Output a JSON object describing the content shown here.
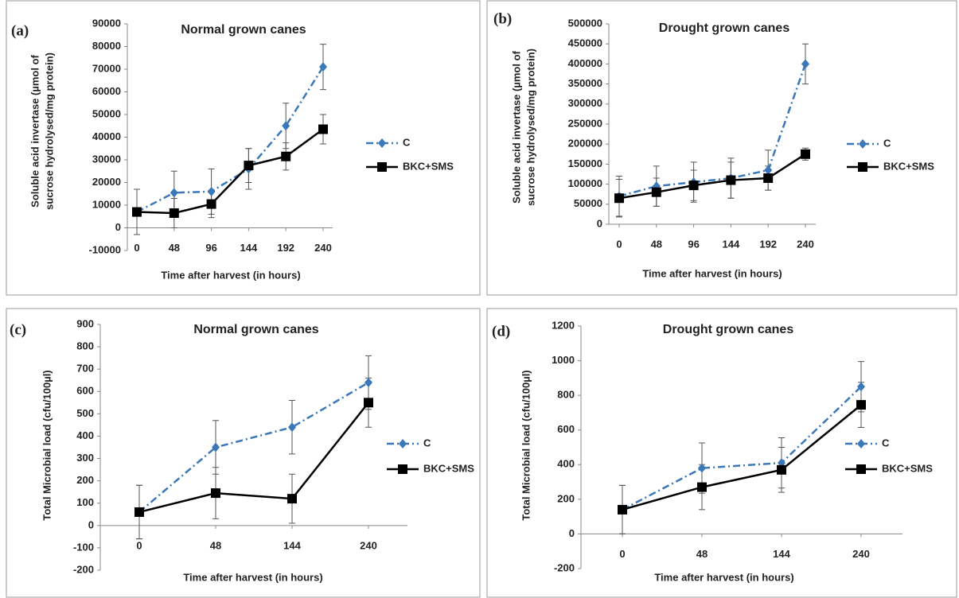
{
  "chart_data": [
    {
      "type": "line",
      "panel_label": "(a)",
      "title": "Normal grown canes",
      "ylabel": [
        "Soluble acid invertase (µmol of",
        "sucrose hydrolysed/mg protein)"
      ],
      "xlabel": "Time after harvest (in hours)",
      "categories": [
        "0",
        "48",
        "96",
        "144",
        "192",
        "240"
      ],
      "series": [
        {
          "name": "C",
          "color": "#3a78b8",
          "marker": "diamond",
          "linestyle": "dashdot",
          "values": [
            7000,
            15500,
            16000,
            26000,
            45000,
            71000
          ],
          "errors": [
            10000,
            9500,
            10000,
            9000,
            10000,
            10000
          ]
        },
        {
          "name": "BKC+SMS",
          "color": "#000000",
          "marker": "square",
          "linestyle": "solid",
          "values": [
            7000,
            6500,
            10500,
            27500,
            31500,
            43500
          ],
          "errors": [
            10000,
            6500,
            6000,
            7500,
            6000,
            6500
          ]
        }
      ],
      "ylim": [
        -10000,
        90000
      ],
      "yticks": [
        -10000,
        0,
        10000,
        20000,
        30000,
        40000,
        50000,
        60000,
        70000,
        80000,
        90000
      ]
    },
    {
      "type": "line",
      "panel_label": "(b)",
      "title": "Drought grown canes",
      "ylabel": [
        "Soluble acid invertase (µmol of",
        "sucrose hydrolysed/mg protein)"
      ],
      "xlabel": "Time after harvest (in hours)",
      "categories": [
        "0",
        "48",
        "96",
        "144",
        "192",
        "240"
      ],
      "series": [
        {
          "name": "C",
          "color": "#3a78b8",
          "marker": "diamond",
          "linestyle": "dashdot",
          "values": [
            70000,
            95000,
            105000,
            115000,
            135000,
            400000
          ],
          "errors": [
            50000,
            50000,
            50000,
            50000,
            50000,
            50000
          ]
        },
        {
          "name": "BKC+SMS",
          "color": "#000000",
          "marker": "square",
          "linestyle": "solid",
          "values": [
            65000,
            80000,
            97000,
            110000,
            115000,
            175000
          ],
          "errors": [
            47000,
            35000,
            38000,
            45000,
            30000,
            15000
          ]
        }
      ],
      "ylim": [
        0,
        500000
      ],
      "yticks": [
        0,
        50000,
        100000,
        150000,
        200000,
        250000,
        300000,
        350000,
        400000,
        450000,
        500000
      ]
    },
    {
      "type": "line",
      "panel_label": "(c)",
      "title": "Normal grown canes",
      "ylabel": [
        "Total Microbial load (cfu/100µl)"
      ],
      "xlabel": "Time after harvest (in hours)",
      "categories": [
        "0",
        "48",
        "144",
        "240"
      ],
      "series": [
        {
          "name": "C",
          "color": "#3a78b8",
          "marker": "diamond",
          "linestyle": "dashdot",
          "values": [
            60,
            350,
            440,
            640
          ],
          "errors": [
            120,
            120,
            120,
            120
          ]
        },
        {
          "name": "BKC+SMS",
          "color": "#000000",
          "marker": "square",
          "linestyle": "solid",
          "values": [
            60,
            145,
            120,
            550
          ],
          "errors": [
            120,
            115,
            110,
            110
          ]
        }
      ],
      "ylim": [
        -200,
        900
      ],
      "yticks": [
        -200,
        -100,
        0,
        100,
        200,
        300,
        400,
        500,
        600,
        700,
        800,
        900
      ]
    },
    {
      "type": "line",
      "panel_label": "(d)",
      "title": "Drought grown canes",
      "ylabel": [
        "Total Microbial load (cfu/100µl)"
      ],
      "xlabel": "Time after harvest (in hours)",
      "categories": [
        "0",
        "48",
        "144",
        "240"
      ],
      "series": [
        {
          "name": "C",
          "color": "#3a78b8",
          "marker": "diamond",
          "linestyle": "dashdot",
          "values": [
            140,
            380,
            410,
            850
          ],
          "errors": [
            140,
            145,
            145,
            145
          ]
        },
        {
          "name": "BKC+SMS",
          "color": "#000000",
          "marker": "square",
          "linestyle": "solid",
          "values": [
            140,
            270,
            370,
            745
          ],
          "errors": [
            140,
            130,
            130,
            130
          ]
        }
      ],
      "ylim": [
        -200,
        1200
      ],
      "yticks": [
        -200,
        0,
        200,
        400,
        600,
        800,
        1000,
        1200
      ]
    }
  ]
}
